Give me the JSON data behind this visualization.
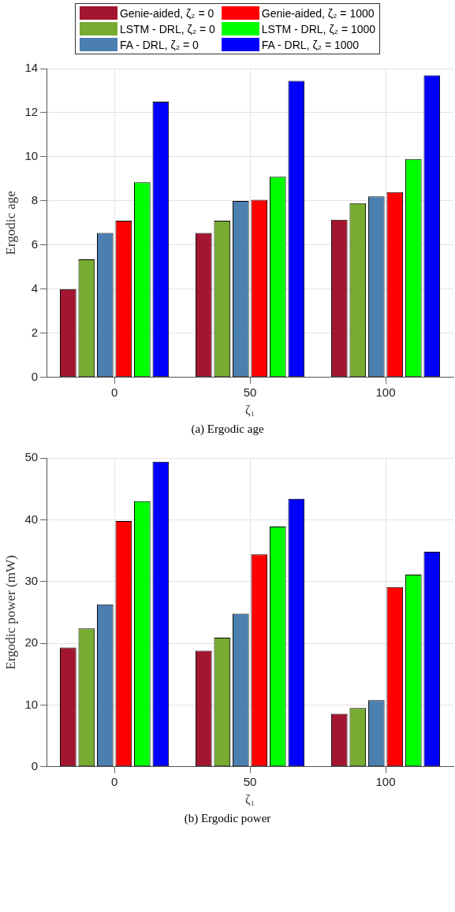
{
  "chart_data": [
    {
      "type": "bar",
      "categories": [
        "0",
        "50",
        "100"
      ],
      "xlabel": "ζ₁",
      "ylabel": "Ergodic age",
      "ylim": [
        0,
        14
      ],
      "yticks": [
        0,
        2,
        4,
        6,
        8,
        10,
        12,
        14
      ],
      "grid": true,
      "legend": "top",
      "annotations": [
        "(a) Ergodic age"
      ],
      "series": [
        {
          "name": "Genie-aided, ζ₂ = 0",
          "color": "#a31530",
          "values": [
            4.0,
            6.55,
            7.15
          ]
        },
        {
          "name": "LSTM - DRL, ζ₂ = 0",
          "color": "#77ac30",
          "values": [
            5.35,
            7.1,
            7.9
          ]
        },
        {
          "name": "FA - DRL, ζ₂ = 0",
          "color": "#4a7fb0",
          "values": [
            6.55,
            8.0,
            8.2
          ]
        },
        {
          "name": "Genie-aided, ζ₂ = 1000",
          "color": "#ff0000",
          "values": [
            7.1,
            8.05,
            8.4
          ]
        },
        {
          "name": "LSTM - DRL, ζ₂ = 1000",
          "color": "#00ff00",
          "values": [
            8.85,
            9.1,
            9.9
          ]
        },
        {
          "name": "FA - DRL, ζ₂ = 1000",
          "color": "#0000ff",
          "values": [
            12.5,
            13.45,
            13.7
          ]
        }
      ]
    },
    {
      "type": "bar",
      "categories": [
        "0",
        "50",
        "100"
      ],
      "xlabel": "ζ₁",
      "ylabel": "Ergodic power (mW)",
      "ylim": [
        0,
        50
      ],
      "yticks": [
        0,
        10,
        20,
        30,
        40,
        50
      ],
      "grid": true,
      "annotations": [
        "(b) Ergodic power"
      ],
      "series": [
        {
          "color": "#a31530",
          "values": [
            19.3,
            18.8,
            8.6
          ]
        },
        {
          "color": "#77ac30",
          "values": [
            22.4,
            20.9,
            9.5
          ]
        },
        {
          "color": "#4a7fb0",
          "values": [
            26.3,
            24.8,
            10.8
          ]
        },
        {
          "color": "#ff0000",
          "values": [
            39.8,
            34.4,
            29.1
          ]
        },
        {
          "color": "#00ff00",
          "values": [
            43.0,
            38.9,
            31.1
          ]
        },
        {
          "color": "#0000ff",
          "values": [
            49.4,
            43.4,
            34.8
          ]
        }
      ]
    }
  ]
}
